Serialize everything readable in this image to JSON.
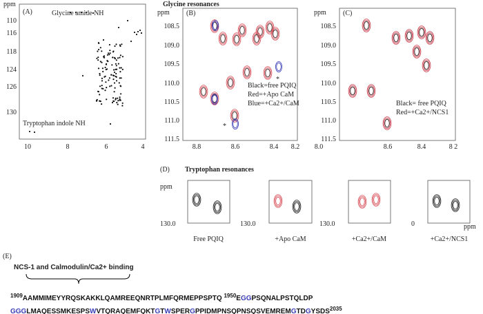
{
  "panel_a": {
    "label": "(A)",
    "unit": "ppm",
    "yticks": [
      "110",
      "116",
      "118",
      "124",
      "126",
      "130"
    ],
    "xticks": [
      "10",
      "8",
      "6",
      "4"
    ],
    "annotations": [
      "Glycine amide NH",
      "Tryptophan indole NH"
    ]
  },
  "panel_b": {
    "title": "Glycine resonances",
    "label": "(B)",
    "unit": "ppm",
    "yticks": [
      "108.5",
      "109.0",
      "109.5",
      "110.0",
      "110.5",
      "111.0",
      "111.5"
    ],
    "xticks": [
      "8.8",
      "8.6",
      "8.4",
      "8.2"
    ],
    "legend": [
      "Black=free PQIQ",
      "Red=+Apo CaM",
      "Blue=+Ca2+/CaM"
    ],
    "markers": [
      "*",
      "*"
    ]
  },
  "panel_c": {
    "label": "(C)",
    "unit": "ppm",
    "yticks": [
      "108.5",
      "109.0",
      "109.5",
      "110.0",
      "110.5",
      "111.0",
      "111.5"
    ],
    "xticks": [
      "8.0",
      "8.6",
      "8.4",
      "8 2"
    ],
    "legend": [
      "Black= free PQIQ",
      "Red=+Ca2+/NCS1"
    ]
  },
  "panel_d": {
    "label": "(D)",
    "title": "Tryptophan resonances",
    "unit": "ppm",
    "axis_labels": [
      "130.0",
      "130.0",
      "130.0",
      "0"
    ],
    "unit_right": "ppm",
    "captions": [
      "Free PQIQ",
      "+Apo CaM",
      "+Ca2+/CaM",
      "+Ca2+/NCS1"
    ]
  },
  "panel_e": {
    "label": "(E)",
    "title": "NCS-1 and Calmodulin/Ca2+ binding",
    "lines": [
      [
        {
          "text": "1909",
          "sup": true
        },
        {
          "text": "AAMMIMEYYRQSKAKKLQAMREEQNRTPLMFQRMEPPSPTQ "
        },
        {
          "text": "1950",
          "sup": true
        },
        {
          "text": "E"
        },
        {
          "text": "GG",
          "color": "#3a3db5"
        },
        {
          "text": "PSQNALPSTQLDP"
        }
      ],
      [
        {
          "text": "GGG",
          "color": "#3a3db5"
        },
        {
          "text": "LMAQESSMKESPS"
        },
        {
          "text": "W",
          "color": "#3a3db5"
        },
        {
          "text": "VTQRAQEMFQKT"
        },
        {
          "text": "G",
          "color": "#3a3db5"
        },
        {
          "text": "T"
        },
        {
          "text": "W",
          "color": "#3a3db5"
        },
        {
          "text": "SPER"
        },
        {
          "text": "G",
          "color": "#3a3db5"
        },
        {
          "text": "PPIDMPNSQPNSQSVEMREM"
        },
        {
          "text": "G",
          "color": "#3a3db5"
        },
        {
          "text": "TD"
        },
        {
          "text": "G",
          "color": "#3a3db5"
        },
        {
          "text": "YSDS"
        },
        {
          "text": "2035",
          "sup": true
        }
      ]
    ]
  }
}
